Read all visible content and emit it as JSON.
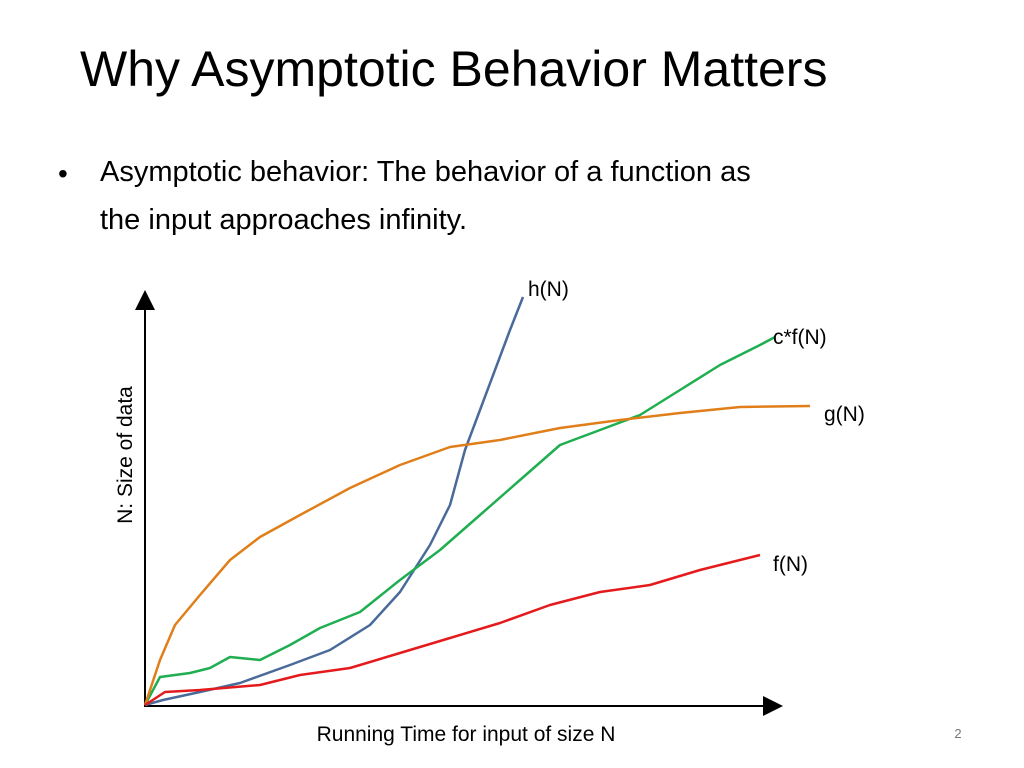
{
  "header": {
    "title": "Why Asymptotic Behavior Matters"
  },
  "bullets": [
    "Asymptotic behavior: The behavior of a function as",
    "the input approaches infinity."
  ],
  "figure": {
    "y_axis_label": "N: Size of data",
    "x_axis_label": "Running Time for input of size N",
    "curves": [
      "h(N)",
      "c*f(N)",
      "g(N)",
      "f(N)"
    ]
  },
  "footer": {
    "page_number": "2"
  }
}
